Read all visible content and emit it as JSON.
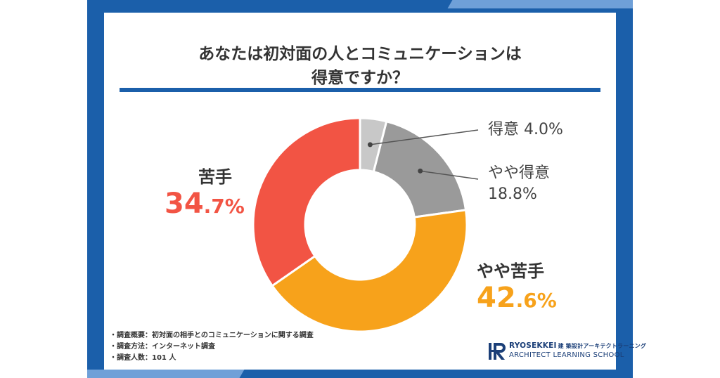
{
  "title_line1": "あなたは初対面の人とコミュニケーションは",
  "title_line2": "得意ですか？",
  "chart_data": {
    "type": "pie",
    "categories": [
      "得意",
      "やや得意",
      "やや苦手",
      "苦手"
    ],
    "values": [
      4.0,
      18.8,
      42.6,
      34.7
    ],
    "value_labels": [
      "4.0%",
      "18.8%",
      "42.6%",
      "34.7%"
    ],
    "colors": [
      "#c8c8c8",
      "#9a9a9a",
      "#f7a21b",
      "#f25444"
    ],
    "title": "あなたは初対面の人とコミュニケーションは得意ですか？"
  },
  "labels": {
    "tokui": {
      "name": "得意",
      "pct": "4.0%"
    },
    "yaya_tokui": {
      "name": "やや得意",
      "pct": "18.8%"
    },
    "yaya_nigate": {
      "name": "やや苦手",
      "pct_big": "42",
      "pct_small": ".6%",
      "color": "#f7a21b"
    },
    "nigate": {
      "name": "苦手",
      "pct_big": "34",
      "pct_small": ".7%",
      "color": "#f25444"
    }
  },
  "notes": [
    "・調査概要：初対面の相手とのコミュニケーションに関する調査",
    "・調査方法：インターネット調査",
    "・調査人数：101 人"
  ],
  "logo": {
    "line1": "RYOSEKKEI",
    "line1_jp": "建 築設計アーキテクトラーニング",
    "line2": "ARCHITECT LEARNING SCHOOL",
    "color": "#1b3f78"
  },
  "colors": {
    "frame": "#1b5faa",
    "accent": "#6fa0d8"
  }
}
